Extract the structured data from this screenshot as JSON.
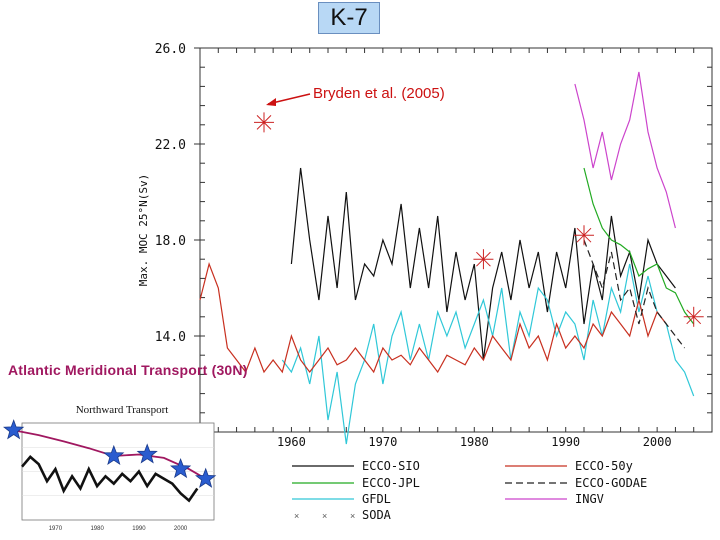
{
  "slide": {
    "title": "K-7"
  },
  "colors": {
    "sio": "#111111",
    "jpl": "#22aa22",
    "gfdl": "#30c8d8",
    "soda": "#555555",
    "o50y": "#c83020",
    "godae": "#222222",
    "ingv": "#cc44cc",
    "star": "#cc2222",
    "inset_line": "#a01860",
    "inset_star": "#2a5ccf"
  },
  "chart_data": [
    {
      "type": "line",
      "title": "",
      "ylabel": "Max. MOC 25°N(Sv)",
      "xlabel": "",
      "xlim": [
        1950,
        2006
      ],
      "ylim": [
        10,
        26
      ],
      "yticks": [
        "26.0",
        "22.0",
        "18.0",
        "14.0"
      ],
      "xticks": [
        "1960",
        "1970",
        "1980",
        "1990",
        "2000"
      ],
      "annotation": "Bryden et al. (2005)",
      "legend": [
        "ECCO-SIO",
        "ECCO-JPL",
        "GFDL",
        "SODA",
        "ECCO-50y",
        "ECCO-GODAE",
        "INGV"
      ],
      "series": [
        {
          "name": "ECCO-SIO",
          "x": [
            1960,
            1961,
            1962,
            1963,
            1964,
            1965,
            1966,
            1967,
            1968,
            1969,
            1970,
            1971,
            1972,
            1973,
            1974,
            1975,
            1976,
            1977,
            1978,
            1979,
            1980,
            1981,
            1982,
            1983,
            1984,
            1985,
            1986,
            1987,
            1988,
            1989,
            1990,
            1991,
            1992,
            1993,
            1994,
            1995,
            1996,
            1997,
            1998,
            1999,
            2000,
            2001,
            2002
          ],
          "y": [
            17,
            21,
            18,
            15.5,
            19,
            16,
            20,
            15.5,
            17,
            16.5,
            18,
            17,
            19.5,
            16,
            18.5,
            16,
            19,
            15,
            17.5,
            15.5,
            17,
            13,
            16,
            17.5,
            15.5,
            18,
            16,
            17.5,
            15,
            17.5,
            16,
            18.5,
            14.5,
            17,
            15.5,
            19,
            16.5,
            17.5,
            15.5,
            18,
            17,
            16.5,
            16
          ]
        },
        {
          "name": "ECCO-JPL",
          "x": [
            1992,
            1993,
            1994,
            1995,
            1996,
            1997,
            1998,
            1999,
            2000,
            2001,
            2002,
            2003,
            2004
          ],
          "y": [
            21,
            19.5,
            18.5,
            18,
            17.8,
            17.5,
            16.5,
            16.8,
            17,
            16,
            15.8,
            15,
            14.5
          ]
        },
        {
          "name": "GFDL",
          "x": [
            1959,
            1960,
            1961,
            1962,
            1963,
            1964,
            1965,
            1966,
            1967,
            1968,
            1969,
            1970,
            1971,
            1972,
            1973,
            1974,
            1975,
            1976,
            1977,
            1978,
            1979,
            1980,
            1981,
            1982,
            1983,
            1984,
            1985,
            1986,
            1987,
            1988,
            1989,
            1990,
            1991,
            1992,
            1993,
            1994,
            1995,
            1996,
            1997,
            1998,
            1999,
            2000,
            2001,
            2002,
            2003,
            2004
          ],
          "y": [
            13,
            12.5,
            13.5,
            12,
            14,
            10.5,
            12.5,
            9.5,
            12,
            13,
            14.5,
            12,
            14,
            15,
            13,
            14.5,
            13,
            15,
            14,
            15,
            13.5,
            14.5,
            15.5,
            14,
            16,
            13,
            15,
            14,
            16,
            15.5,
            14,
            15,
            14.5,
            13,
            15.5,
            14,
            16,
            15,
            17,
            15,
            16.5,
            15,
            14.5,
            13,
            12.5,
            11.5
          ]
        },
        {
          "name": "SODA",
          "x": [],
          "y": []
        },
        {
          "name": "ECCO-50y",
          "x": [
            1950,
            1951,
            1952,
            1953,
            1954,
            1955,
            1956,
            1957,
            1958,
            1959,
            1960,
            1961,
            1962,
            1963,
            1964,
            1965,
            1966,
            1967,
            1968,
            1969,
            1970,
            1971,
            1972,
            1973,
            1974,
            1975,
            1976,
            1977,
            1978,
            1979,
            1980,
            1981,
            1982,
            1983,
            1984,
            1985,
            1986,
            1987,
            1988,
            1989,
            1990,
            1991,
            1992,
            1993,
            1994,
            1995,
            1996,
            1997,
            1998,
            1999,
            2000,
            2001
          ],
          "y": [
            15.5,
            17,
            16,
            13.5,
            13,
            12.5,
            13.5,
            12.5,
            13,
            12.5,
            14,
            13,
            12.5,
            13,
            13.5,
            12.8,
            13,
            13.5,
            13,
            12.5,
            13.5,
            13,
            13.2,
            12.8,
            13.5,
            13,
            12.5,
            13.2,
            13,
            12.8,
            13.5,
            13,
            14,
            13.5,
            13,
            14.5,
            13.5,
            14,
            13,
            14.5,
            13.5,
            14,
            13.5,
            14.5,
            14,
            15,
            14.5,
            14,
            15.5,
            14,
            15,
            14.5
          ]
        },
        {
          "name": "ECCO-GODAE",
          "x": [
            1992,
            1993,
            1994,
            1995,
            1996,
            1997,
            1998,
            1999,
            2000,
            2001,
            2002,
            2003
          ],
          "y": [
            18,
            17,
            16,
            17.5,
            15.5,
            16,
            14.5,
            16,
            15,
            14.5,
            14,
            13.5
          ]
        },
        {
          "name": "INGV",
          "x": [
            1991,
            1992,
            1993,
            1994,
            1995,
            1996,
            1997,
            1998,
            1999,
            2000,
            2001,
            2002
          ],
          "y": [
            24.5,
            23,
            21,
            22.5,
            20.5,
            22,
            23,
            25,
            22.5,
            21,
            20,
            18.5
          ]
        }
      ],
      "markers": [
        {
          "x": 1957,
          "y": 22.9
        },
        {
          "x": 1981,
          "y": 17.2
        },
        {
          "x": 1992,
          "y": 18.2
        },
        {
          "x": 2004,
          "y": 14.8
        }
      ]
    },
    {
      "type": "line",
      "title": "Northward Transport",
      "suptitle": "Atlantic Meridional Transport (30N)",
      "xticks": [
        "1970",
        "1980",
        "1990",
        "2000"
      ],
      "ylabel": "",
      "xlim": [
        1962,
        2008
      ],
      "ylim": [
        -1,
        1
      ],
      "series": [
        {
          "name": "",
          "x": [
            1962,
            1964,
            1966,
            1968,
            1970,
            1972,
            1974,
            1976,
            1978,
            1980,
            1982,
            1984,
            1986,
            1988,
            1990,
            1992,
            1994,
            1996,
            1998,
            2000,
            2002,
            2004
          ],
          "y": [
            0.1,
            0.3,
            0.15,
            -0.2,
            0.05,
            -0.4,
            -0.1,
            -0.35,
            0.05,
            -0.3,
            -0.1,
            -0.25,
            -0.05,
            -0.2,
            0.0,
            -0.3,
            -0.05,
            -0.15,
            -0.25,
            -0.45,
            -0.6,
            -0.35
          ]
        },
        {
          "name": "",
          "x": [
            1960,
            1966,
            1972,
            1978,
            1984,
            1990,
            1996,
            2002,
            2006
          ],
          "y": [
            0.85,
            0.75,
            0.62,
            0.48,
            0.32,
            0.35,
            0.28,
            0.05,
            -0.15
          ]
        }
      ],
      "markers": [
        {
          "x": 1960,
          "y": 0.85
        },
        {
          "x": 1984,
          "y": 0.32
        },
        {
          "x": 1992,
          "y": 0.35
        },
        {
          "x": 2000,
          "y": 0.05
        },
        {
          "x": 2006,
          "y": -0.15
        }
      ]
    }
  ]
}
